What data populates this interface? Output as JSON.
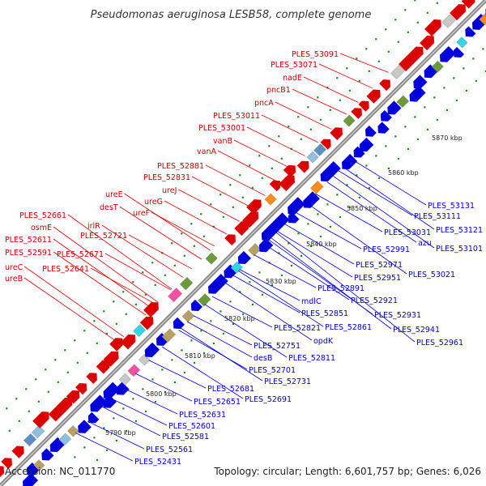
{
  "title": "Pseudomonas aeruginosa LESB58, complete genome",
  "footer": {
    "accession": "Accession: NC_011770",
    "summary": "Topology: circular; Length: 6,601,757 bp; Genes: 6,026"
  },
  "colors": {
    "forward": "#dd0000",
    "reverse": "#0000dd",
    "backbone": "#888888",
    "dots": "#228822"
  },
  "ticks": [
    "5790 kbp",
    "5800 kbp",
    "5810 kbp",
    "5820 kbp",
    "5830 kbp",
    "5840 kbp",
    "5850 kbp",
    "5860 kbp",
    "5870 kbp"
  ],
  "forward_labels": [
    "PLES_53091",
    "PLES_53071",
    "nadE",
    "pncB1",
    "pncA",
    "PLES_53011",
    "PLES_53001",
    "vanB",
    "vanA",
    "PLES_52881",
    "PLES_52831",
    "ureE",
    "ureJ",
    "desT",
    "ureG",
    "ureF",
    "irlR",
    "PLES_52721",
    "PLES_52661",
    "osmE",
    "PLES_52671",
    "PLES_52611",
    "PLES_52591",
    "PLES_52641",
    "ureC",
    "ureB"
  ],
  "reverse_labels": [
    "PLES_53131",
    "PLES_53111",
    "PLES_53121",
    "PLES_53031",
    "azu",
    "PLES_53101",
    "PLES_52991",
    "PLES_52971",
    "PLES_53021",
    "PLES_52951",
    "PLES_52891",
    "PLES_52921",
    "mdlC",
    "PLES_52851",
    "PLES_52931",
    "PLES_52821",
    "PLES_52861",
    "PLES_52941",
    "opdK",
    "PLES_52961",
    "PLES_52751",
    "PLES_52811",
    "desB",
    "PLES_52701",
    "PLES_52731",
    "PLES_52681",
    "PLES_52691",
    "PLES_52651",
    "PLES_52631",
    "PLES_52601",
    "PLES_52581",
    "PLES_52561",
    "PLES_52431"
  ]
}
